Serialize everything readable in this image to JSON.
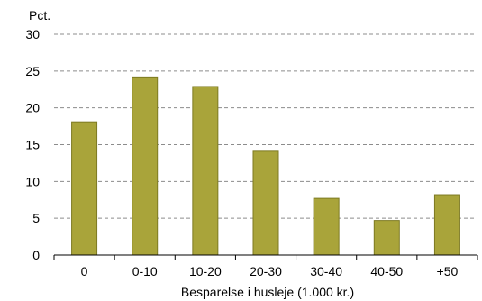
{
  "chart_data": {
    "type": "bar",
    "ylabel": "Pct.",
    "xlabel": "Besparelse i husleje (1.000 kr.)",
    "categories": [
      "0",
      "0-10",
      "10-20",
      "20-30",
      "30-40",
      "40-50",
      "+50"
    ],
    "values": [
      18.1,
      24.2,
      22.9,
      14.1,
      7.7,
      4.7,
      8.2
    ],
    "ylim": [
      0,
      30
    ],
    "yticks": [
      0,
      5,
      10,
      15,
      20,
      25,
      30
    ],
    "grid": true,
    "bar_color": "#a9a43a",
    "bar_edge_color": "#7d7a22"
  }
}
